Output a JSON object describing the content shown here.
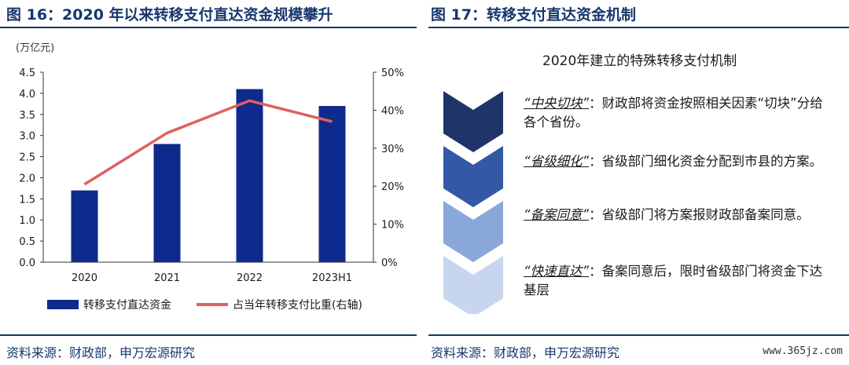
{
  "left_panel": {
    "title": "图 16：2020 年以来转移支付直达资金规模攀升",
    "source": "资料来源：财政部，申万宏源研究"
  },
  "right_panel": {
    "title": "图 17：转移支付直达资金机制",
    "source": "资料来源：财政部，申万宏源研究",
    "mechanism_title": "2020年建立的特殊转移支付机制",
    "steps": [
      {
        "term": "“中央切块”",
        "colon": "：",
        "desc": "财政部将资金按照相关因素“切块”分给各个省份。",
        "color": "#1f3468"
      },
      {
        "term": "“省级细化”",
        "colon": "：",
        "desc": "省级部门细化资金分配到市县的方案。",
        "color": "#3358a6"
      },
      {
        "term": "“备案同意”",
        "colon": "：",
        "desc": "省级部门将方案报财政部备案同意。",
        "color": "#8aa7d9"
      },
      {
        "term": "“快速直达”",
        "colon": "：",
        "desc": "备案同意后，限时省级部门将资金下达基层",
        "color": "#c7d5ee"
      }
    ]
  },
  "watermark": "www.365jz.com",
  "chart_data": {
    "type": "bar",
    "categories": [
      "2020",
      "2021",
      "2022",
      "2023H1"
    ],
    "series": [
      {
        "name": "转移支付直达资金",
        "type": "bar",
        "axis": "left",
        "values": [
          1.7,
          2.8,
          4.1,
          3.7
        ],
        "color": "#0e2a8c"
      },
      {
        "name": "占当年转移支付比重(右轴)",
        "type": "line",
        "axis": "right",
        "values": [
          20.5,
          34,
          42.5,
          37
        ],
        "color": "#e06060"
      }
    ],
    "unit_label": "(万亿元)",
    "ylim": [
      0,
      4.5
    ],
    "yticks": [
      "0.0",
      "0.5",
      "1.0",
      "1.5",
      "2.0",
      "2.5",
      "3.0",
      "3.5",
      "4.0",
      "4.5"
    ],
    "y2lim": [
      0,
      50
    ],
    "y2ticks": [
      "0%",
      "10%",
      "20%",
      "30%",
      "40%",
      "50%"
    ],
    "grid": false,
    "legend": "bottom"
  }
}
